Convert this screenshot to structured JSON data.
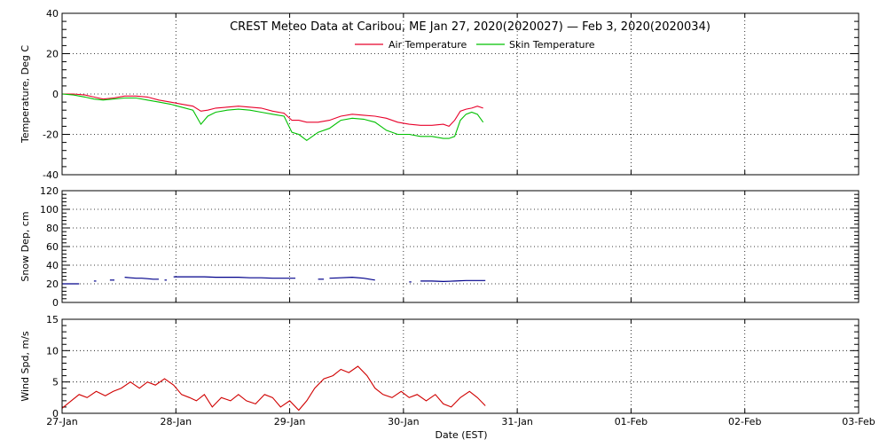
{
  "title": "CREST Meteo Data at Caribou, ME   Jan 27, 2020(2020027) — Feb  3, 2020(2020034)",
  "xlabel": "Date (EST)",
  "x_ticks": [
    "27-Jan",
    "28-Jan",
    "29-Jan",
    "30-Jan",
    "31-Jan",
    "01-Feb",
    "02-Feb",
    "03-Feb"
  ],
  "chart_data": [
    {
      "type": "line",
      "ylabel": "Temperature, Deg C",
      "xlim": [
        0,
        7
      ],
      "ylim": [
        -40,
        40
      ],
      "y_ticks": [
        -40,
        -20,
        0,
        20,
        40
      ],
      "grid": true,
      "legend": "top-center",
      "series": [
        {
          "name": "Air Temperature",
          "color": "#e8002a",
          "x": [
            0.0,
            0.1,
            0.2,
            0.28,
            0.36,
            0.45,
            0.55,
            0.65,
            0.75,
            0.85,
            0.95,
            1.05,
            1.15,
            1.22,
            1.28,
            1.35,
            1.45,
            1.55,
            1.65,
            1.75,
            1.85,
            1.95,
            2.02,
            2.08,
            2.15,
            2.25,
            2.35,
            2.45,
            2.55,
            2.65,
            2.75,
            2.85,
            2.95,
            3.05,
            3.15,
            3.25,
            3.35,
            3.4,
            3.45,
            3.5,
            3.55,
            3.6,
            3.65,
            3.7
          ],
          "y": [
            0,
            0,
            -0.5,
            -1.5,
            -2.5,
            -2,
            -1,
            -1,
            -1.5,
            -3,
            -4,
            -5,
            -6,
            -8.5,
            -8,
            -7,
            -6.5,
            -6,
            -6.5,
            -7,
            -8.5,
            -9.5,
            -13,
            -13,
            -14,
            -14,
            -13,
            -11,
            -10,
            -10.5,
            -11,
            -12,
            -14,
            -15,
            -15.5,
            -15.5,
            -15,
            -16,
            -13,
            -8.5,
            -7.5,
            -7,
            -6,
            -7
          ]
        },
        {
          "name": "Skin Temperature",
          "color": "#00c000",
          "x": [
            0.0,
            0.1,
            0.2,
            0.28,
            0.36,
            0.45,
            0.55,
            0.65,
            0.75,
            0.85,
            0.95,
            1.05,
            1.15,
            1.22,
            1.28,
            1.35,
            1.45,
            1.55,
            1.65,
            1.75,
            1.85,
            1.95,
            2.02,
            2.08,
            2.15,
            2.25,
            2.35,
            2.45,
            2.55,
            2.65,
            2.75,
            2.85,
            2.95,
            3.05,
            3.15,
            3.25,
            3.35,
            3.4,
            3.45,
            3.5,
            3.55,
            3.6,
            3.65,
            3.7
          ],
          "y": [
            0,
            -0.5,
            -1.5,
            -2.5,
            -3,
            -2.5,
            -2,
            -2,
            -3,
            -4,
            -5,
            -6.5,
            -8,
            -15,
            -11,
            -9,
            -8,
            -7.5,
            -8,
            -9,
            -10,
            -11,
            -19,
            -20,
            -23,
            -19,
            -17,
            -13,
            -12,
            -12.5,
            -14,
            -18,
            -20,
            -20,
            -21,
            -21,
            -22,
            -22,
            -21,
            -13,
            -10,
            -9,
            -10,
            -14
          ]
        }
      ]
    },
    {
      "type": "scatter",
      "ylabel": "Snow Dep, cm",
      "xlim": [
        0,
        7
      ],
      "ylim": [
        0,
        120
      ],
      "y_ticks": [
        0,
        20,
        40,
        60,
        80,
        100,
        120
      ],
      "grid": true,
      "series": [
        {
          "color": "#00008b",
          "segments": [
            {
              "x": [
                0.0,
                0.05,
                0.1,
                0.15
              ],
              "y": [
                20,
                20,
                20,
                20
              ]
            },
            {
              "x": [
                0.28,
                0.3
              ],
              "y": [
                23,
                23
              ]
            },
            {
              "x": [
                0.42,
                0.44,
                0.46
              ],
              "y": [
                24,
                24,
                24
              ]
            },
            {
              "x": [
                0.55,
                0.6,
                0.65,
                0.7,
                0.75,
                0.8,
                0.85
              ],
              "y": [
                27,
                26.5,
                26,
                26,
                25.5,
                25,
                25
              ]
            },
            {
              "x": [
                0.9,
                0.92
              ],
              "y": [
                24,
                24
              ]
            },
            {
              "x": [
                0.98,
                1.05,
                1.15,
                1.25,
                1.35,
                1.45,
                1.55,
                1.65,
                1.75,
                1.85,
                1.95,
                2.05
              ],
              "y": [
                27.5,
                27.5,
                27.5,
                27.5,
                27,
                27,
                27,
                26.5,
                26.5,
                26,
                26,
                26
              ]
            },
            {
              "x": [
                2.25,
                2.3
              ],
              "y": [
                25,
                25
              ]
            },
            {
              "x": [
                2.35,
                2.45,
                2.55,
                2.65,
                2.75
              ],
              "y": [
                26,
                26.5,
                27,
                26,
                24
              ]
            },
            {
              "x": [
                3.05,
                3.07
              ],
              "y": [
                22,
                22
              ]
            },
            {
              "x": [
                3.15,
                3.25,
                3.35,
                3.45,
                3.55,
                3.65,
                3.72
              ],
              "y": [
                23,
                23,
                22.5,
                23,
                23.5,
                23.5,
                23.5
              ]
            }
          ]
        }
      ]
    },
    {
      "type": "line",
      "ylabel": "Wind Spd, m/s",
      "xlim": [
        0,
        7
      ],
      "ylim": [
        0,
        15
      ],
      "y_ticks": [
        0,
        5,
        10,
        15
      ],
      "grid": true,
      "series": [
        {
          "color": "#d00000",
          "x": [
            0.0,
            0.08,
            0.15,
            0.22,
            0.3,
            0.38,
            0.45,
            0.52,
            0.6,
            0.68,
            0.75,
            0.82,
            0.9,
            0.98,
            1.05,
            1.12,
            1.18,
            1.25,
            1.32,
            1.4,
            1.48,
            1.55,
            1.62,
            1.7,
            1.78,
            1.85,
            1.92,
            2.0,
            2.08,
            2.15,
            2.22,
            2.3,
            2.38,
            2.45,
            2.52,
            2.6,
            2.68,
            2.75,
            2.82,
            2.9,
            2.98,
            3.05,
            3.12,
            3.2,
            3.28,
            3.35,
            3.42,
            3.5,
            3.58,
            3.65,
            3.72
          ],
          "y": [
            0.8,
            2.0,
            3.0,
            2.5,
            3.5,
            2.8,
            3.5,
            4.0,
            5.0,
            4.0,
            5.0,
            4.5,
            5.5,
            4.5,
            3.0,
            2.5,
            2.0,
            3.0,
            1.0,
            2.5,
            2.0,
            3.0,
            2.0,
            1.5,
            3.0,
            2.5,
            1.0,
            2.0,
            0.5,
            2.0,
            4.0,
            5.5,
            6.0,
            7.0,
            6.5,
            7.5,
            6.0,
            4.0,
            3.0,
            2.5,
            3.5,
            2.5,
            3.0,
            2.0,
            3.0,
            1.5,
            1.0,
            2.5,
            3.5,
            2.5,
            1.2
          ]
        }
      ]
    }
  ]
}
